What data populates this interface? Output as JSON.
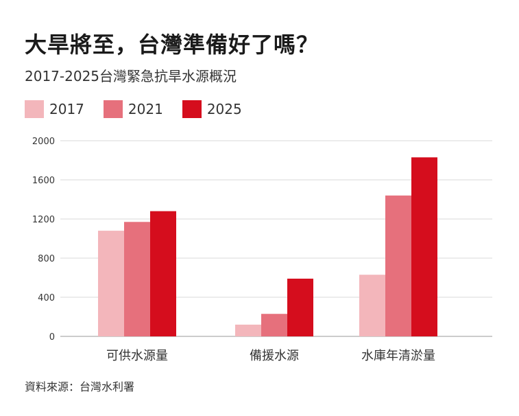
{
  "title": "大旱將至，台灣準備好了嗎？",
  "subtitle": "2017-2025台灣緊急抗旱水源概況",
  "source": "資料來源：台灣水利署",
  "chart_data": {
    "type": "bar",
    "categories": [
      "可供水源量",
      "備援水源",
      "水庫年清淤量"
    ],
    "series": [
      {
        "name": "2017",
        "color": "#f3b6bb",
        "values": [
          1080,
          120,
          630
        ]
      },
      {
        "name": "2021",
        "color": "#e6707c",
        "values": [
          1170,
          230,
          1440
        ]
      },
      {
        "name": "2025",
        "color": "#d50d1d",
        "values": [
          1280,
          590,
          1830
        ]
      }
    ],
    "ylim": [
      0,
      2000
    ],
    "yticks": [
      0,
      400,
      800,
      1200,
      1600,
      2000
    ],
    "grid": true,
    "legend_position": "top-left"
  }
}
